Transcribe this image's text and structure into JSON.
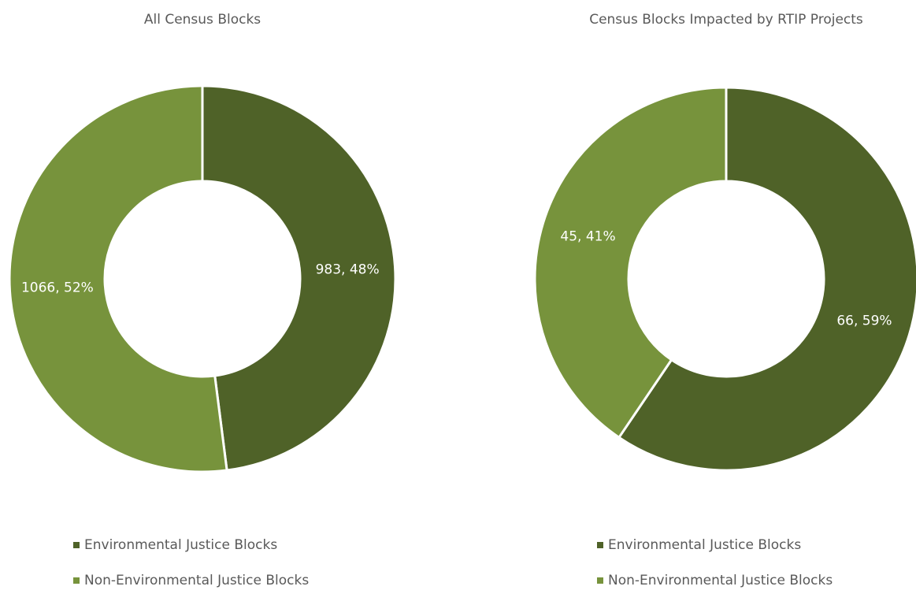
{
  "chart_data": [
    {
      "type": "pie",
      "title": "All Census Blocks",
      "categories": [
        "Environmental Justice Blocks",
        "Non-Environmental Justice Blocks"
      ],
      "values": [
        983,
        1066
      ],
      "value_labels": [
        "983, 48%",
        "1066, 52%"
      ],
      "colors": [
        "#4f6228",
        "#77933c"
      ]
    },
    {
      "type": "pie",
      "title": "Census Blocks Impacted by RTIP Projects",
      "categories": [
        "Environmental Justice Blocks",
        "Non-Environmental Justice Blocks"
      ],
      "values": [
        66,
        45
      ],
      "value_labels": [
        "66, 59%",
        "45, 41%"
      ],
      "colors": [
        "#4f6228",
        "#77933c"
      ]
    }
  ]
}
